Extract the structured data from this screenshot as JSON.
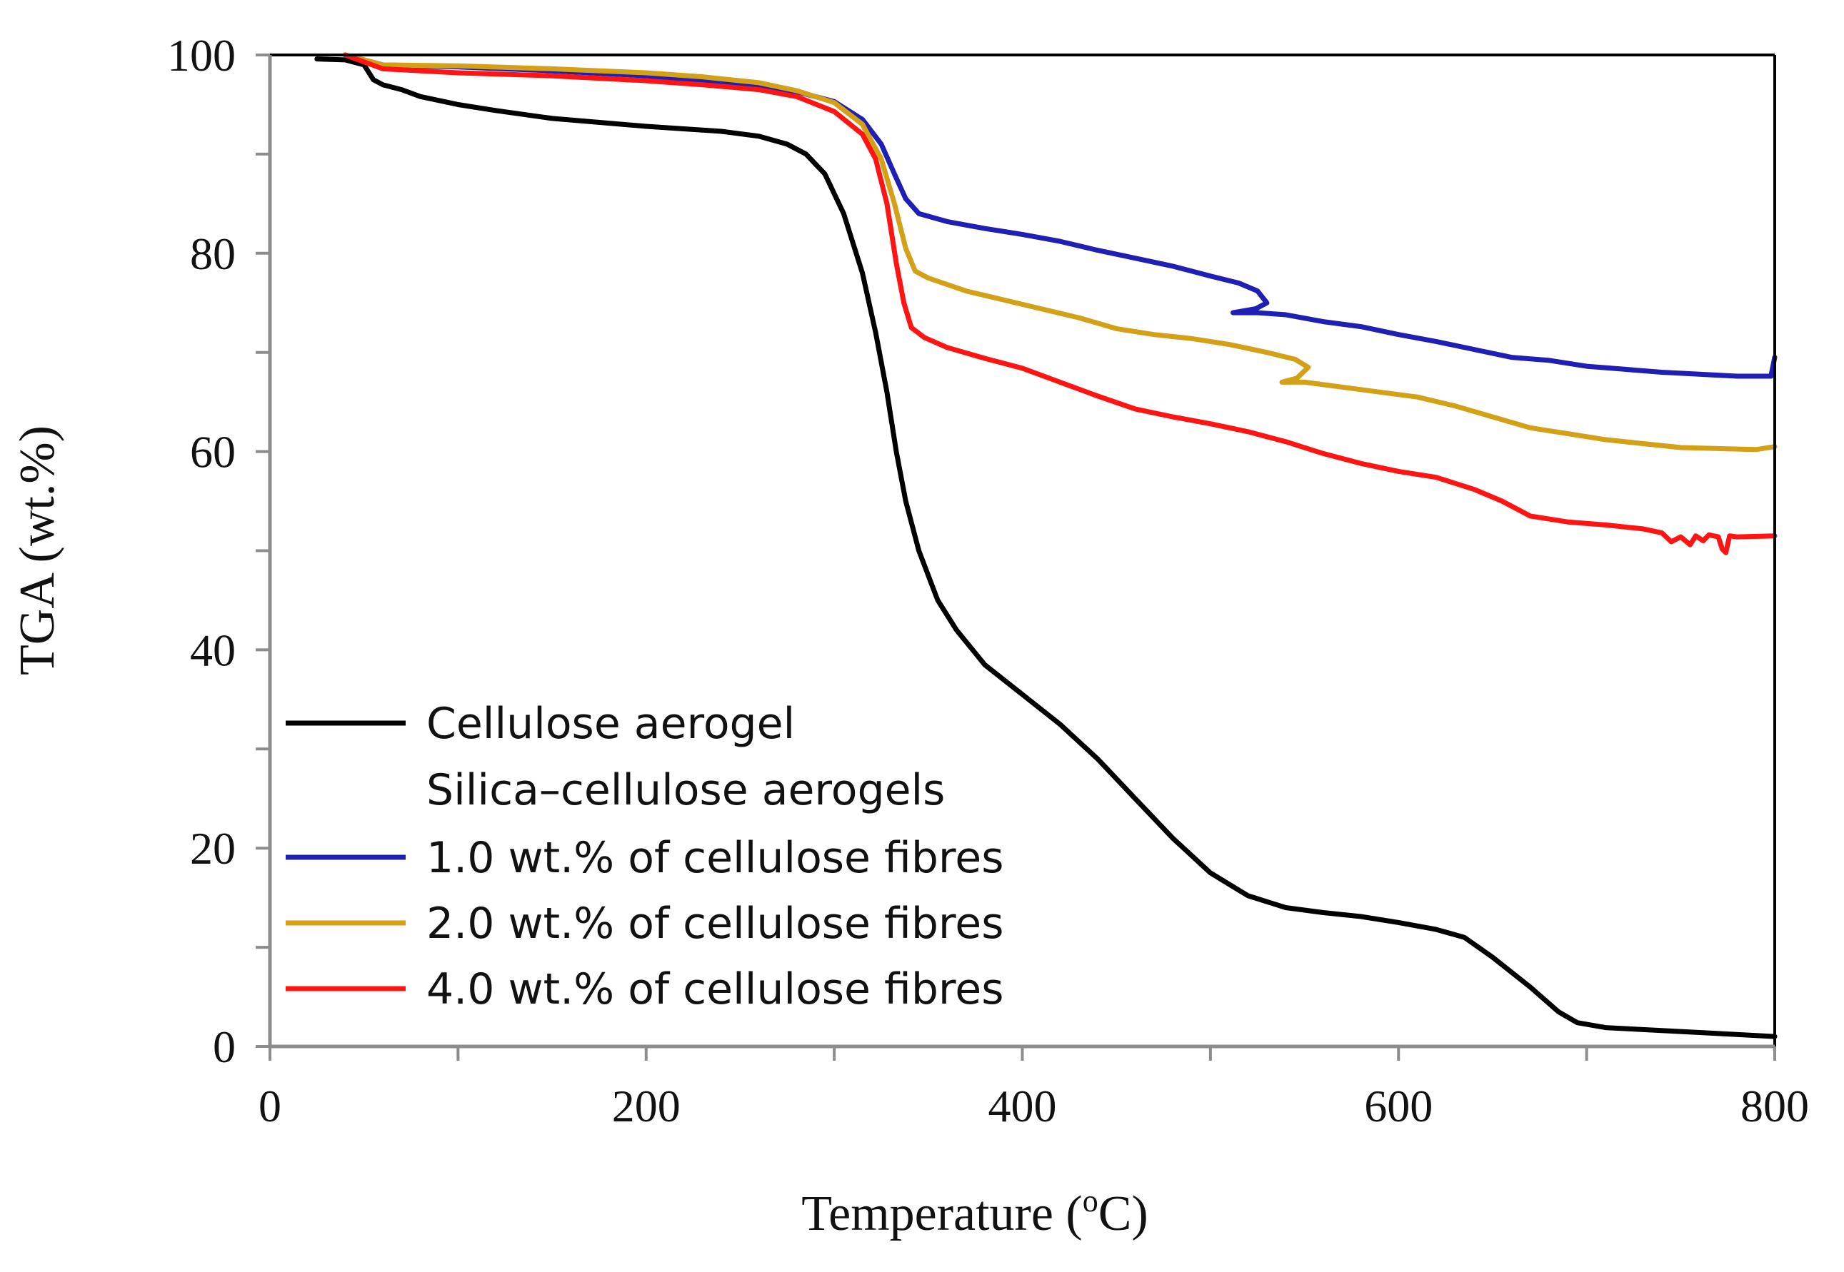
{
  "chart_data": {
    "type": "line",
    "title": "",
    "xlabel": "Temperature (°C)",
    "xlabel_main": "Temperature (",
    "xlabel_sup": "o",
    "xlabel_end": "C)",
    "ylabel": "TGA (wt.%)",
    "xlim": [
      0,
      800
    ],
    "ylim": [
      0,
      100
    ],
    "x_ticks": [
      0,
      200,
      400,
      600,
      800
    ],
    "x_tick_labels": [
      "0",
      "200",
      "400",
      "600",
      "800"
    ],
    "x_minor_step": 100,
    "y_ticks": [
      0,
      20,
      40,
      60,
      80,
      100
    ],
    "y_tick_labels": [
      "0",
      "20",
      "40",
      "60",
      "80",
      "100"
    ],
    "y_minor_step": 10,
    "grid": false,
    "legend_position": "lower-left",
    "legend_subtitle": "Silica–cellulose aerogels",
    "series": [
      {
        "name": "Cellulose aerogel",
        "color": "#000000",
        "points": [
          [
            25,
            99.6
          ],
          [
            40,
            99.5
          ],
          [
            50,
            99
          ],
          [
            55,
            97.5
          ],
          [
            60,
            97
          ],
          [
            70,
            96.5
          ],
          [
            80,
            95.8
          ],
          [
            100,
            95
          ],
          [
            120,
            94.4
          ],
          [
            150,
            93.6
          ],
          [
            200,
            92.8
          ],
          [
            240,
            92.3
          ],
          [
            260,
            91.8
          ],
          [
            275,
            91
          ],
          [
            285,
            90
          ],
          [
            295,
            88
          ],
          [
            305,
            84
          ],
          [
            315,
            78
          ],
          [
            322,
            72
          ],
          [
            328,
            66
          ],
          [
            333,
            60
          ],
          [
            338,
            55
          ],
          [
            345,
            50
          ],
          [
            355,
            45
          ],
          [
            365,
            42
          ],
          [
            380,
            38.5
          ],
          [
            400,
            35.5
          ],
          [
            420,
            32.5
          ],
          [
            440,
            29
          ],
          [
            460,
            25
          ],
          [
            480,
            21
          ],
          [
            500,
            17.5
          ],
          [
            520,
            15.2
          ],
          [
            540,
            14
          ],
          [
            560,
            13.5
          ],
          [
            580,
            13.1
          ],
          [
            600,
            12.5
          ],
          [
            620,
            11.8
          ],
          [
            635,
            11
          ],
          [
            650,
            9
          ],
          [
            670,
            6
          ],
          [
            685,
            3.5
          ],
          [
            695,
            2.4
          ],
          [
            710,
            1.9
          ],
          [
            740,
            1.6
          ],
          [
            770,
            1.3
          ],
          [
            800,
            1
          ]
        ]
      },
      {
        "name": "1.0 wt.% of cellulose fibres",
        "color": "#1f1fb4",
        "points": [
          [
            40,
            100
          ],
          [
            60,
            99
          ],
          [
            100,
            98.8
          ],
          [
            150,
            98.4
          ],
          [
            200,
            97.9
          ],
          [
            250,
            97
          ],
          [
            280,
            96.3
          ],
          [
            300,
            95.3
          ],
          [
            315,
            93.5
          ],
          [
            325,
            91
          ],
          [
            332,
            88
          ],
          [
            338,
            85.5
          ],
          [
            345,
            84
          ],
          [
            360,
            83.2
          ],
          [
            380,
            82.5
          ],
          [
            400,
            81.9
          ],
          [
            420,
            81.2
          ],
          [
            440,
            80.3
          ],
          [
            460,
            79.5
          ],
          [
            480,
            78.7
          ],
          [
            500,
            77.7
          ],
          [
            515,
            77
          ],
          [
            525,
            76.2
          ],
          [
            530,
            75
          ],
          [
            524,
            74.4
          ],
          [
            512,
            74
          ],
          [
            525,
            74
          ],
          [
            540,
            73.8
          ],
          [
            560,
            73.1
          ],
          [
            580,
            72.6
          ],
          [
            600,
            71.8
          ],
          [
            620,
            71.1
          ],
          [
            640,
            70.3
          ],
          [
            660,
            69.5
          ],
          [
            680,
            69.2
          ],
          [
            700,
            68.6
          ],
          [
            720,
            68.3
          ],
          [
            740,
            68
          ],
          [
            760,
            67.8
          ],
          [
            780,
            67.6
          ],
          [
            798,
            67.6
          ],
          [
            800,
            69.5
          ]
        ]
      },
      {
        "name": "2.0 wt.% of cellulose fibres",
        "color": "#d4a017",
        "points": [
          [
            40,
            100
          ],
          [
            60,
            99
          ],
          [
            100,
            98.9
          ],
          [
            150,
            98.6
          ],
          [
            200,
            98.2
          ],
          [
            230,
            97.8
          ],
          [
            260,
            97.2
          ],
          [
            280,
            96.4
          ],
          [
            300,
            95.2
          ],
          [
            315,
            93
          ],
          [
            325,
            89.5
          ],
          [
            332,
            85
          ],
          [
            338,
            80.5
          ],
          [
            343,
            78.2
          ],
          [
            350,
            77.5
          ],
          [
            370,
            76.2
          ],
          [
            390,
            75.3
          ],
          [
            410,
            74.4
          ],
          [
            430,
            73.5
          ],
          [
            450,
            72.4
          ],
          [
            470,
            71.8
          ],
          [
            490,
            71.4
          ],
          [
            510,
            70.8
          ],
          [
            530,
            70
          ],
          [
            545,
            69.3
          ],
          [
            552,
            68.5
          ],
          [
            546,
            67.4
          ],
          [
            538,
            67
          ],
          [
            550,
            67
          ],
          [
            570,
            66.5
          ],
          [
            590,
            66
          ],
          [
            610,
            65.5
          ],
          [
            630,
            64.6
          ],
          [
            650,
            63.5
          ],
          [
            670,
            62.4
          ],
          [
            690,
            61.8
          ],
          [
            710,
            61.2
          ],
          [
            730,
            60.8
          ],
          [
            750,
            60.4
          ],
          [
            770,
            60.3
          ],
          [
            790,
            60.2
          ],
          [
            800,
            60.5
          ]
        ]
      },
      {
        "name": "4.0 wt.% of cellulose fibres",
        "color": "#ff1414",
        "points": [
          [
            40,
            100
          ],
          [
            60,
            98.6
          ],
          [
            100,
            98.2
          ],
          [
            150,
            97.9
          ],
          [
            200,
            97.4
          ],
          [
            230,
            97
          ],
          [
            260,
            96.5
          ],
          [
            280,
            95.8
          ],
          [
            300,
            94.3
          ],
          [
            315,
            92
          ],
          [
            322,
            89.5
          ],
          [
            328,
            85
          ],
          [
            333,
            79
          ],
          [
            337,
            75
          ],
          [
            341,
            72.5
          ],
          [
            348,
            71.5
          ],
          [
            360,
            70.5
          ],
          [
            380,
            69.4
          ],
          [
            400,
            68.4
          ],
          [
            420,
            67
          ],
          [
            440,
            65.6
          ],
          [
            460,
            64.3
          ],
          [
            480,
            63.5
          ],
          [
            500,
            62.8
          ],
          [
            520,
            62
          ],
          [
            540,
            61
          ],
          [
            560,
            59.8
          ],
          [
            580,
            58.8
          ],
          [
            600,
            58
          ],
          [
            620,
            57.4
          ],
          [
            640,
            56.2
          ],
          [
            655,
            55
          ],
          [
            670,
            53.5
          ],
          [
            690,
            52.9
          ],
          [
            710,
            52.6
          ],
          [
            730,
            52.2
          ],
          [
            740,
            51.8
          ],
          [
            745,
            50.9
          ],
          [
            750,
            51.4
          ],
          [
            755,
            50.6
          ],
          [
            758,
            51.5
          ],
          [
            762,
            51
          ],
          [
            765,
            51.6
          ],
          [
            770,
            51.4
          ],
          [
            772,
            50.2
          ],
          [
            774,
            49.8
          ],
          [
            776,
            51.5
          ],
          [
            780,
            51.4
          ],
          [
            800,
            51.5
          ]
        ]
      }
    ]
  }
}
